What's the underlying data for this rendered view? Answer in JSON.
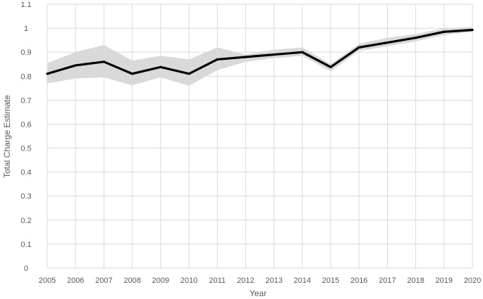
{
  "chart_data": {
    "type": "line",
    "title": "",
    "xlabel": "Year",
    "ylabel": "Total Charge Estimate",
    "x": [
      2005,
      2006,
      2007,
      2008,
      2009,
      2010,
      2011,
      2012,
      2013,
      2014,
      2015,
      2016,
      2017,
      2018,
      2019,
      2020
    ],
    "x_ticks": [
      "2005",
      "2006",
      "2007",
      "2008",
      "2009",
      "2010",
      "2011",
      "2012",
      "2013",
      "2014",
      "2015",
      "2016",
      "2017",
      "2018",
      "2019",
      "2020"
    ],
    "y_ticks": [
      "0",
      "0.1",
      "0.2",
      "0.3",
      "0.4",
      "0.5",
      "0.6",
      "0.7",
      "0.8",
      "0.9",
      "1",
      "1.1"
    ],
    "ylim": [
      0,
      1.1
    ],
    "grid": true,
    "legend": "none",
    "series": [
      {
        "values": [
          0.81,
          0.845,
          0.86,
          0.81,
          0.838,
          0.81,
          0.87,
          0.88,
          0.89,
          0.9,
          0.838,
          0.92,
          0.94,
          0.96,
          0.985,
          0.993
        ],
        "lower": [
          0.77,
          0.79,
          0.795,
          0.762,
          0.795,
          0.76,
          0.825,
          0.86,
          0.875,
          0.885,
          0.82,
          0.905,
          0.925,
          0.945,
          0.972,
          0.985
        ],
        "upper": [
          0.855,
          0.9,
          0.93,
          0.865,
          0.885,
          0.87,
          0.92,
          0.89,
          0.91,
          0.92,
          0.85,
          0.935,
          0.96,
          0.975,
          1.0,
          1.005
        ],
        "color": "#000000",
        "band_color": "#d9d9d9"
      }
    ]
  }
}
